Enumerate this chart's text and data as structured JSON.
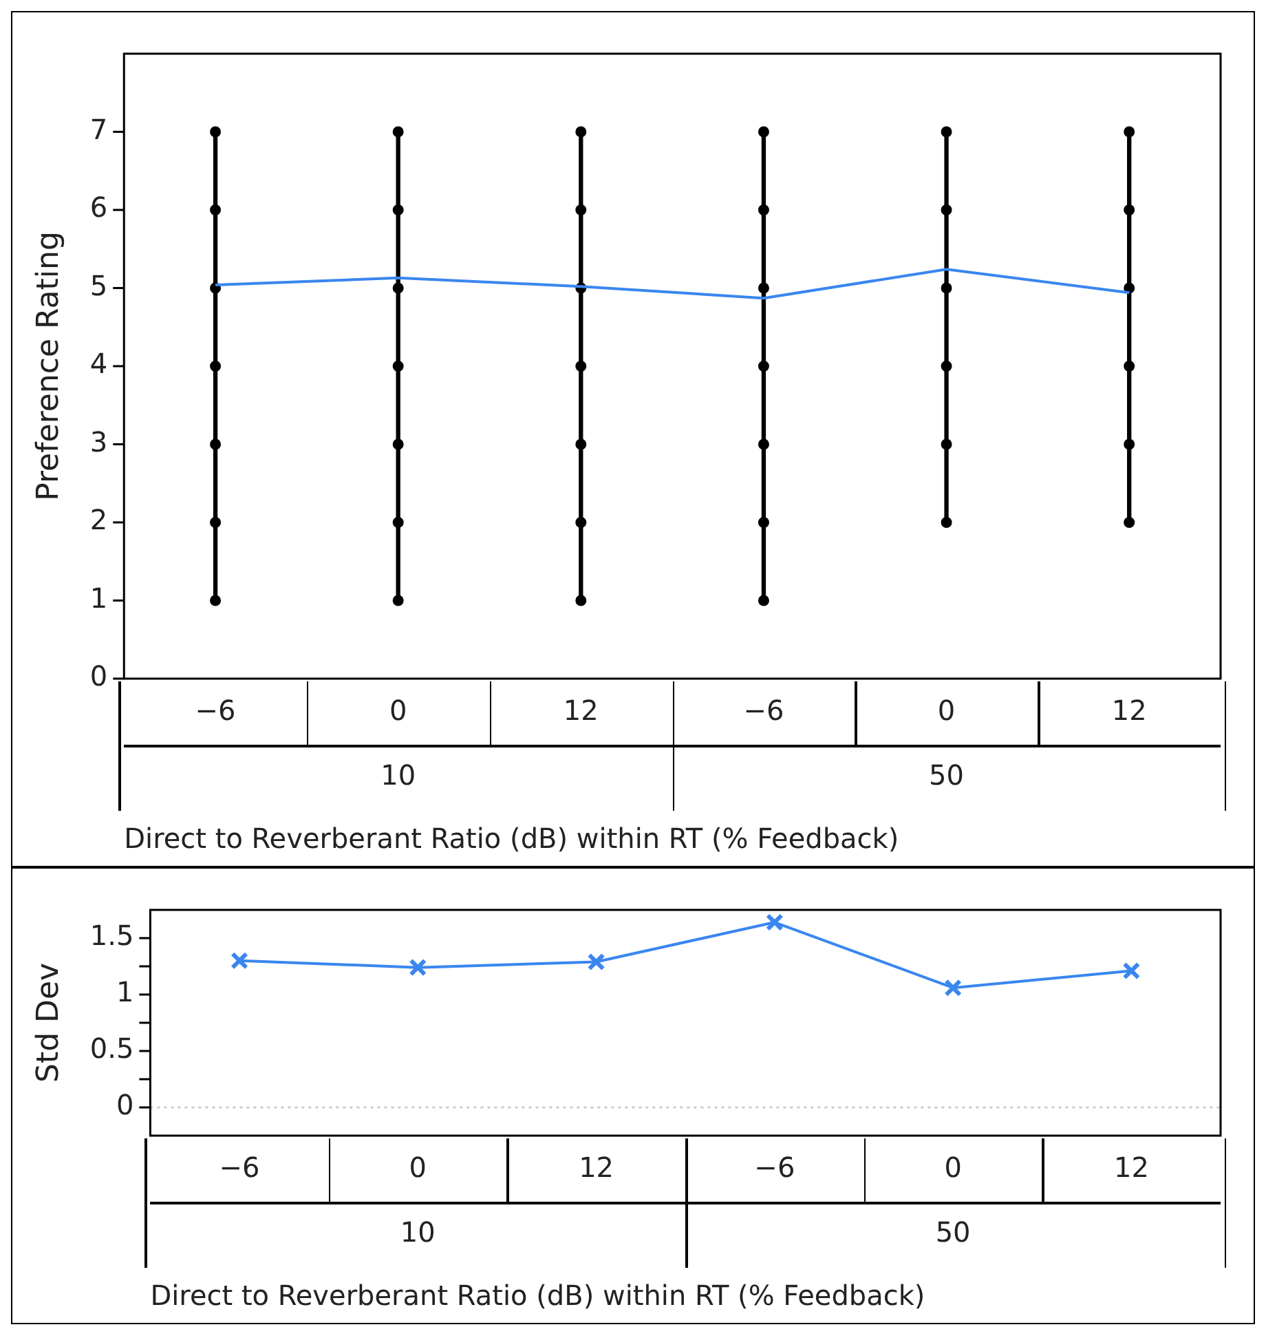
{
  "chart_data": [
    {
      "type": "line",
      "ylabel": "Preference Rating",
      "xlabel": "Direct to Reverberant Ratio (dB) within RT (% Feedback)",
      "categories": [
        "−6",
        "0",
        "12",
        "−6",
        "0",
        "12"
      ],
      "annotations": [
        "10",
        "50"
      ],
      "ylim": [
        0,
        8
      ],
      "yticks": [
        0,
        1,
        2,
        3,
        4,
        5,
        6,
        7
      ],
      "series": [
        {
          "type": "bar",
          "color": "#000000",
          "base": [
            1,
            1,
            1,
            1,
            2,
            2
          ],
          "values": [
            6,
            6,
            6,
            6,
            5,
            5
          ]
        },
        {
          "type": "line",
          "color": "#3a86f0",
          "values": [
            5.04,
            5.13,
            5.02,
            4.87,
            5.24,
            4.94
          ]
        },
        {
          "type": "scatter",
          "color": "#000000",
          "values": [
            1,
            1,
            1,
            1,
            null,
            null
          ]
        },
        {
          "type": "scatter",
          "color": "#000000",
          "values": [
            2,
            2,
            2,
            2,
            2,
            2
          ]
        },
        {
          "type": "scatter",
          "color": "#000000",
          "values": [
            3,
            3,
            3,
            3,
            3,
            3
          ]
        },
        {
          "type": "scatter",
          "color": "#000000",
          "values": [
            4,
            4,
            4,
            4,
            4,
            4
          ]
        },
        {
          "type": "scatter",
          "color": "#000000",
          "values": [
            5,
            5,
            5,
            5,
            5,
            5
          ]
        },
        {
          "type": "scatter",
          "color": "#000000",
          "values": [
            6,
            6,
            6,
            6,
            6,
            6
          ]
        },
        {
          "type": "scatter",
          "color": "#000000",
          "values": [
            7,
            7,
            7,
            7,
            7,
            7
          ]
        }
      ]
    },
    {
      "type": "line",
      "ylabel": "Std Dev",
      "xlabel": "Direct to Reverberant Ratio (dB) within RT (% Feedback)",
      "categories": [
        "−6",
        "0",
        "12",
        "−6",
        "0",
        "12"
      ],
      "annotations": [
        "10",
        "50"
      ],
      "ylim": [
        -0.25,
        1.75
      ],
      "yticks": [
        0,
        {
          "value": 0.25,
          "label": null
        },
        0.5,
        {
          "value": 0.75,
          "label": null
        },
        1,
        {
          "value": 1.25,
          "label": null
        },
        1.5
      ],
      "marker": "cross",
      "ref_lines": [
        {
          "axis": "y",
          "value": 0,
          "color": "#cccccc",
          "line_style": "dotted"
        }
      ],
      "series": [
        {
          "type": "line",
          "color": "#3a86f0",
          "values": [
            1.3,
            1.24,
            1.29,
            1.64,
            1.06,
            1.21
          ]
        }
      ]
    }
  ]
}
